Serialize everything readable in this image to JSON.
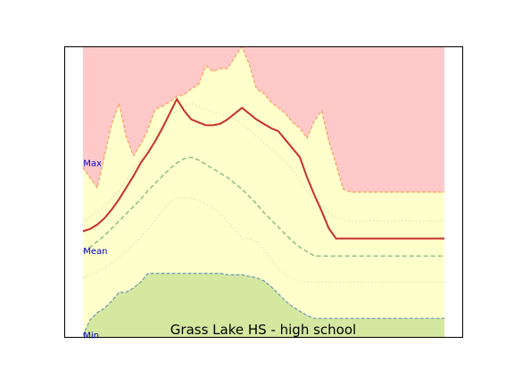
{
  "chart_data": {
    "type": "area",
    "title": "Grass Lake HS - high school",
    "xlabel": "",
    "ylabel": "",
    "grid": false,
    "x": [
      0,
      2,
      4,
      6,
      8,
      10,
      12,
      14,
      16,
      18,
      20,
      22,
      24,
      26,
      28,
      30,
      32,
      34,
      36,
      38,
      40,
      42,
      44,
      46,
      48,
      50,
      52,
      54,
      56,
      58,
      60,
      62,
      64,
      66,
      68,
      70,
      72,
      74,
      76,
      78,
      80,
      82,
      84,
      86,
      88,
      90,
      92,
      94,
      96,
      98,
      100
    ],
    "xlim": [
      -5,
      105
    ],
    "ylim": [
      0,
      100
    ],
    "ytick_labels": [
      {
        "text": "Max",
        "y": 59.8
      },
      {
        "text": "Mean",
        "y": 29.6
      },
      {
        "text": "Min",
        "y": 0.6
      }
    ],
    "series": [
      {
        "key": "max_band",
        "color": "#ffc9c9",
        "values": [
          100,
          100,
          100,
          100,
          100,
          100,
          100,
          100,
          100,
          100,
          100,
          100,
          100,
          100,
          100,
          100,
          100,
          100,
          100,
          100,
          100,
          100,
          100,
          100,
          100,
          100,
          100,
          100,
          100,
          100,
          100,
          100,
          100,
          100,
          100,
          100,
          100,
          100,
          100,
          100,
          100,
          100,
          100,
          100,
          100,
          100,
          100,
          100,
          100,
          100,
          100
        ]
      },
      {
        "key": "upper_edge",
        "color": "#ffffcc",
        "edge": "#f4a05a",
        "values": [
          58.5,
          55.0,
          51.5,
          62.5,
          73.5,
          80.5,
          69.0,
          62.5,
          66.5,
          71.5,
          78.5,
          79.5,
          81.0,
          83.0,
          83.5,
          85.5,
          87.0,
          93.5,
          91.5,
          92.5,
          92.5,
          96.5,
          100,
          94.0,
          85.5,
          84.0,
          81.0,
          79.0,
          77.0,
          74.0,
          72.0,
          68.5,
          74.5,
          78.0,
          67.5,
          59.5,
          51.0,
          50.0,
          50.0,
          50.0,
          50.0,
          50.0,
          50.0,
          50.0,
          50.0,
          50.0,
          50.0,
          50.0,
          50.0,
          50.0,
          50.0
        ]
      },
      {
        "key": "upper_dotted",
        "color": "#d8d8a0",
        "values": [
          40.0,
          41.5,
          43.0,
          45.0,
          47.5,
          50.5,
          54.0,
          57.5,
          61.5,
          65.5,
          69.5,
          73.0,
          76.0,
          78.0,
          79.5,
          80.5,
          79.5,
          78.5,
          77.5,
          77.0,
          76.0,
          75.0,
          73.5,
          71.5,
          69.0,
          67.0,
          65.0,
          63.0,
          60.5,
          57.5,
          54.0,
          50.5,
          47.5,
          45.0,
          43.0,
          41.5,
          40.5,
          40.0,
          40.0,
          40.0,
          40.0,
          40.0,
          40.0,
          40.0,
          40.0,
          40.0,
          40.0,
          40.0,
          40.0,
          40.0,
          40.0
        ]
      },
      {
        "key": "mean",
        "color": "#c8302a",
        "values": [
          36.5,
          37.3,
          38.8,
          41.0,
          44.0,
          47.5,
          51.5,
          55.5,
          60.0,
          63.5,
          67.5,
          72.0,
          77.0,
          82.0,
          78.0,
          75.0,
          74.0,
          73.0,
          73.0,
          73.5,
          75.0,
          77.0,
          79.0,
          77.0,
          75.0,
          73.5,
          72.0,
          71.0,
          68.0,
          65.0,
          62.0,
          55.0,
          49.0,
          43.5,
          37.5,
          34.0,
          34.0,
          34.0,
          34.0,
          34.0,
          34.0,
          34.0,
          34.0,
          34.0,
          34.0,
          34.0,
          34.0,
          34.0,
          34.0,
          34.0,
          34.0
        ]
      },
      {
        "key": "mean_dashed",
        "color": "#7ab97a",
        "values": [
          29.5,
          31.0,
          33.0,
          35.0,
          37.5,
          40.0,
          42.5,
          45.0,
          47.5,
          50.5,
          53.0,
          55.5,
          58.0,
          60.0,
          61.5,
          62.0,
          61.0,
          59.5,
          58.0,
          56.5,
          55.0,
          53.0,
          51.0,
          48.5,
          46.0,
          43.0,
          40.5,
          38.0,
          35.5,
          33.0,
          31.0,
          29.5,
          28.0,
          28.0,
          28.0,
          28.0,
          28.0,
          28.0,
          28.0,
          28.0,
          28.0,
          28.0,
          28.0,
          28.0,
          28.0,
          28.0,
          28.0,
          28.0,
          28.0,
          28.0,
          28.0
        ]
      },
      {
        "key": "lower_dotted",
        "color": "#d8d8a0",
        "values": [
          20.5,
          21.5,
          22.5,
          24.0,
          25.5,
          27.5,
          29.5,
          32.0,
          34.5,
          37.0,
          40.0,
          43.5,
          46.5,
          48.0,
          48.0,
          48.0,
          47.0,
          46.0,
          44.5,
          42.5,
          40.0,
          37.0,
          34.0,
          34.0,
          33.0,
          30.0,
          27.0,
          24.0,
          21.5,
          20.0,
          19.0,
          19.0,
          19.0,
          19.0,
          19.0,
          19.0,
          19.0,
          19.0,
          19.0,
          19.0,
          19.0,
          19.0,
          19.0,
          19.0,
          19.0,
          19.0,
          19.0,
          19.0,
          19.0,
          19.0,
          19.0
        ]
      },
      {
        "key": "min_band",
        "color": "#d5e8a0",
        "edge": "#6a9ab0",
        "values": [
          0.6,
          6.0,
          8.5,
          10.0,
          12.5,
          15.5,
          15.5,
          17.0,
          19.0,
          22.0,
          22.0,
          22.0,
          22.0,
          22.0,
          22.0,
          22.0,
          22.0,
          22.0,
          22.0,
          22.0,
          21.5,
          21.5,
          21.5,
          21.0,
          20.5,
          19.5,
          17.5,
          15.0,
          12.5,
          10.5,
          9.0,
          7.5,
          6.5,
          6.5,
          6.5,
          6.5,
          6.5,
          6.5,
          6.5,
          6.5,
          6.5,
          6.5,
          6.5,
          6.5,
          6.5,
          6.5,
          6.5,
          6.5,
          6.5,
          6.5,
          6.5
        ]
      }
    ]
  }
}
